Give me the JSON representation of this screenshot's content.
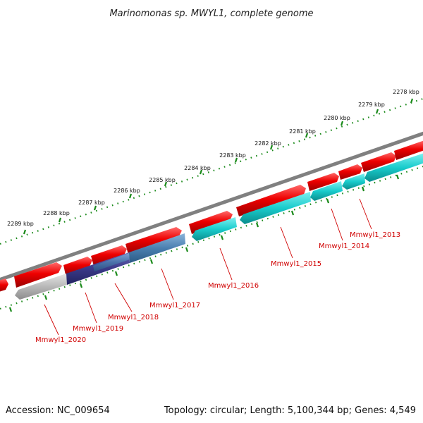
{
  "title": "Marinomonas sp. MWYL1, complete genome",
  "accession": "Accession: NC_009654",
  "topology": "Topology: circular; Length: 5,100,344 bp; Genes: 4,549",
  "colors": {
    "backbone": "#808080",
    "forward_gene": "#ee0000",
    "reverse_teal": "#19cccc",
    "reverse_steel": "#4a7fb0",
    "reverse_navy": "#3a3a88",
    "reverse_gray": "#b8b8b8",
    "ticks": "#1a8a1a",
    "labels": "#d00000"
  },
  "scale_ticks": [
    {
      "kbp": 2278,
      "label": "2278 kbp"
    },
    {
      "kbp": 2279,
      "label": "2279 kbp"
    },
    {
      "kbp": 2280,
      "label": "2280 kbp"
    },
    {
      "kbp": 2281,
      "label": "2281 kbp"
    },
    {
      "kbp": 2282,
      "label": "2282 kbp"
    },
    {
      "kbp": 2283,
      "label": "2283 kbp"
    },
    {
      "kbp": 2284,
      "label": "2284 kbp"
    },
    {
      "kbp": 2285,
      "label": "2285 kbp"
    },
    {
      "kbp": 2286,
      "label": "2286 kbp"
    },
    {
      "kbp": 2287,
      "label": "2287 kbp"
    },
    {
      "kbp": 2288,
      "label": "2288 kbp"
    },
    {
      "kbp": 2289,
      "label": "2289 kbp"
    }
  ],
  "locus_labels": [
    {
      "name": "Mmwyl1_2013"
    },
    {
      "name": "Mmwyl1_2014"
    },
    {
      "name": "Mmwyl1_2015"
    },
    {
      "name": "Mmwyl1_2016"
    },
    {
      "name": "Mmwyl1_2017"
    },
    {
      "name": "Mmwyl1_2018"
    },
    {
      "name": "Mmwyl1_2019"
    },
    {
      "name": "Mmwyl1_2020"
    }
  ]
}
